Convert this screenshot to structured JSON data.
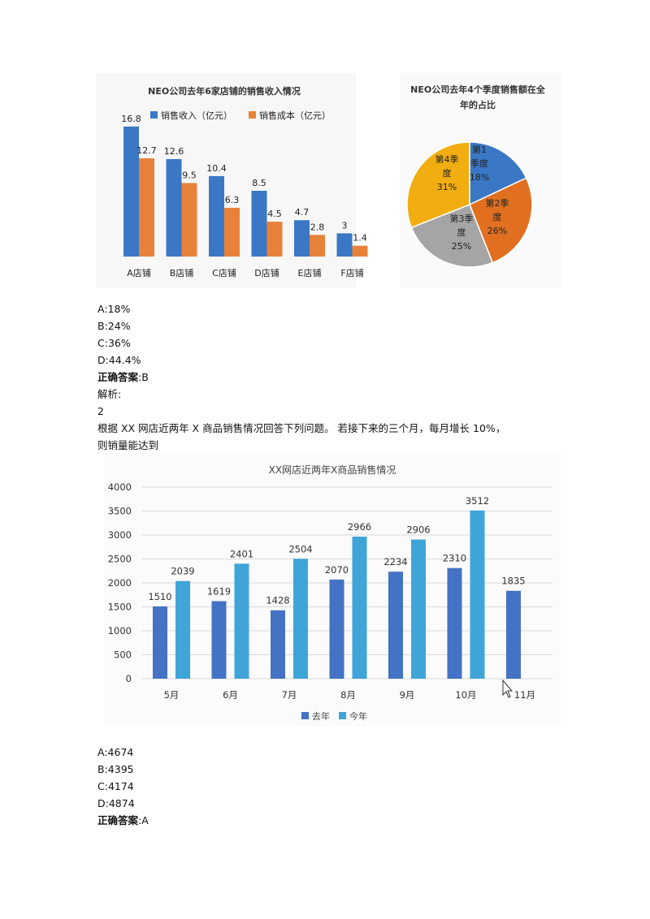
{
  "chart1": {
    "type": "bar",
    "title": "NEO公司去年6家店铺的销售收入情况",
    "categories": [
      "A店铺",
      "B店铺",
      "C店铺",
      "D店铺",
      "E店铺",
      "F店铺"
    ],
    "series": [
      {
        "name": "销售收入（亿元）",
        "color": "#3a78c6",
        "values": [
          16.8,
          12.6,
          10.4,
          8.5,
          4.7,
          3
        ]
      },
      {
        "name": "销售成本（亿元）",
        "color": "#e8823a",
        "values": [
          12.7,
          9.5,
          6.3,
          4.5,
          2.8,
          1.4
        ]
      }
    ],
    "value_labels": [
      [
        "16.8",
        "12.6",
        "10.4",
        "8.5",
        "4.7",
        "3"
      ],
      [
        "12.7",
        "9.5",
        "6.3",
        "4.5",
        "2.8",
        "1.4"
      ]
    ],
    "ylim": [
      0,
      17
    ]
  },
  "chart2": {
    "type": "pie",
    "title_line1": "NEO公司去年4个季度销售额在全",
    "title_line2": "年的占比",
    "slices": [
      {
        "line1": "第1",
        "line2": "季度",
        "line3": "18%",
        "value": 18,
        "color": "#3a78c6"
      },
      {
        "line1": "第2季",
        "line2": "度",
        "line3": "26%",
        "value": 26,
        "color": "#e07020"
      },
      {
        "line1": "第3季",
        "line2": "度",
        "line3": "25%",
        "value": 25,
        "color": "#a5a5a5"
      },
      {
        "line1": "第4季",
        "line2": "度",
        "line3": "31%",
        "value": 31,
        "color": "#f2ae10"
      }
    ]
  },
  "q1": {
    "options": [
      "A:18%",
      "B:24%",
      "C:36%",
      "D:44.4%"
    ],
    "answer_label": "正确答案",
    "answer_value": ":B",
    "analysis": "解析:",
    "number": "2",
    "question_line1": "根据 XX 网店近两年 X 商品销售情况回答下列问题。 若接下来的三个月，每月增长 10%，",
    "question_line2": "则销量能达到"
  },
  "chart3": {
    "type": "bar",
    "title": "XX网店近两年X商品销售情况",
    "categories": [
      "5月",
      "6月",
      "7月",
      "8月",
      "9月",
      "10月",
      "11月"
    ],
    "series": [
      {
        "name": "去年",
        "color": "#4472c4",
        "values": [
          1510,
          1619,
          1428,
          2070,
          2234,
          2310,
          1835
        ]
      },
      {
        "name": "今年",
        "color": "#3fa5d8",
        "values": [
          2039,
          2401,
          2504,
          2966,
          2906,
          3512,
          null
        ]
      }
    ],
    "value_labels": [
      [
        "1510",
        "1619",
        "1428",
        "2070",
        "2234",
        "2310",
        "1835"
      ],
      [
        "2039",
        "2401",
        "2504",
        "2966",
        "2906",
        "3512",
        ""
      ]
    ],
    "yticks": [
      "0",
      "500",
      "1000",
      "1500",
      "2000",
      "2500",
      "3000",
      "3500",
      "4000"
    ],
    "ylim": [
      0,
      4000
    ]
  },
  "q2": {
    "options": [
      "A:4674",
      "B:4395",
      "C:4174",
      "D:4874"
    ],
    "answer_label": "正确答案",
    "answer_value": ":A"
  }
}
